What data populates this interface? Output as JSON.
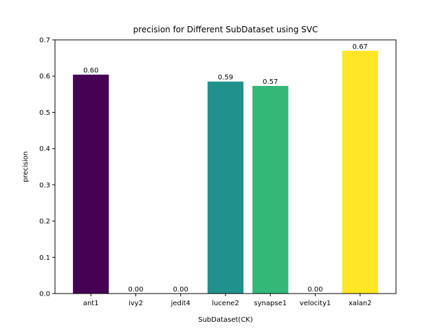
{
  "chart_data": {
    "type": "bar",
    "title": "precision for Different SubDataset using SVC",
    "xlabel": "SubDataset(CK)",
    "ylabel": "precision",
    "categories": [
      "ant1",
      "ivy2",
      "jedit4",
      "lucene2",
      "synapse1",
      "velocity1",
      "xalan2"
    ],
    "values": [
      0.604,
      0.0,
      0.0,
      0.585,
      0.573,
      0.0,
      0.67
    ],
    "value_labels": [
      "0.60",
      "0.00",
      "0.00",
      "0.59",
      "0.57",
      "0.00",
      "0.67"
    ],
    "bar_colors": [
      "#440154",
      "#443983",
      "#31688e",
      "#21918c",
      "#35b779",
      "#90d743",
      "#fde725"
    ],
    "ylim": [
      0,
      0.7
    ],
    "yticks": [
      0.0,
      0.1,
      0.2,
      0.3,
      0.4,
      0.5,
      0.6,
      0.7
    ],
    "ytick_labels": [
      "0.0",
      "0.1",
      "0.2",
      "0.3",
      "0.4",
      "0.5",
      "0.6",
      "0.7"
    ],
    "grid": false,
    "legend": "none"
  }
}
